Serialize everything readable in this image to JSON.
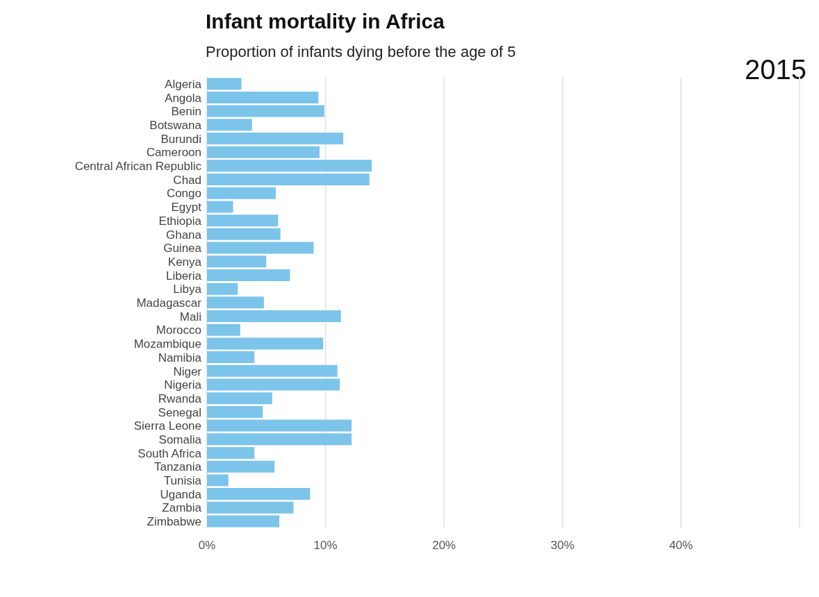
{
  "chart_data": {
    "type": "bar",
    "orientation": "horizontal",
    "title": "Infant mortality in Africa",
    "subtitle": "Proportion of infants dying before the age of 5",
    "annotations": [
      "2015"
    ],
    "categories": [
      "Algeria",
      "Angola",
      "Benin",
      "Botswana",
      "Burundi",
      "Cameroon",
      "Central African Republic",
      "Chad",
      "Congo",
      "Egypt",
      "Ethiopia",
      "Ghana",
      "Guinea",
      "Kenya",
      "Liberia",
      "Libya",
      "Madagascar",
      "Mali",
      "Morocco",
      "Mozambique",
      "Namibia",
      "Niger",
      "Nigeria",
      "Rwanda",
      "Senegal",
      "Sierra Leone",
      "Somalia",
      "South Africa",
      "Tanzania",
      "Tunisia",
      "Uganda",
      "Zambia",
      "Zimbabwe"
    ],
    "values": [
      2.9,
      9.4,
      9.9,
      3.8,
      11.5,
      9.5,
      13.9,
      13.7,
      5.8,
      2.2,
      6.0,
      6.2,
      9.0,
      5.0,
      7.0,
      2.6,
      4.8,
      11.3,
      2.8,
      9.8,
      4.0,
      11.0,
      11.2,
      5.5,
      4.7,
      12.2,
      12.2,
      4.0,
      5.7,
      1.8,
      8.7,
      7.3,
      6.1
    ],
    "color": "#7cc4ea",
    "xlim": [
      0,
      50
    ],
    "xticks": [
      {
        "value": 0,
        "label": "0%"
      },
      {
        "value": 10,
        "label": "10%"
      },
      {
        "value": 20,
        "label": "20%"
      },
      {
        "value": 30,
        "label": "30%"
      },
      {
        "value": 40,
        "label": "40%"
      },
      {
        "value": 50,
        "label": null
      }
    ],
    "grid": "x"
  }
}
